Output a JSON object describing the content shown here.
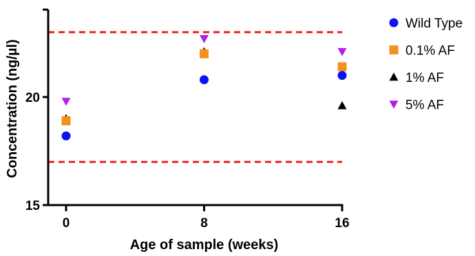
{
  "chart_data": {
    "type": "scatter",
    "title": "",
    "xlabel": "Age of sample (weeks)",
    "ylabel": "Concentration (ng/µl)",
    "x_ticks": [
      0,
      8,
      16
    ],
    "x_tick_labels": [
      "0",
      "8",
      "16"
    ],
    "y_ticks": [
      15,
      20
    ],
    "y_tick_labels": [
      "15",
      "20"
    ],
    "xlim": [
      -1.1,
      16
    ],
    "ylim": [
      15,
      24
    ],
    "grid": false,
    "legend_position": "top-right",
    "reference_lines": [
      {
        "y": 23.0,
        "color": "#ee2222",
        "style": "dashed"
      },
      {
        "y": 17.0,
        "color": "#ee2222",
        "style": "dashed"
      }
    ],
    "series": [
      {
        "name": "Wild Type",
        "marker": "circle",
        "color": "#0a14f0",
        "points": [
          [
            0,
            18.2
          ],
          [
            8,
            20.8
          ],
          [
            16,
            21.0
          ]
        ]
      },
      {
        "name": "0.1% AF",
        "marker": "square",
        "color": "#f5901e",
        "points": [
          [
            0,
            18.9
          ],
          [
            8,
            22.0
          ],
          [
            16,
            21.4
          ]
        ]
      },
      {
        "name": "1% AF",
        "marker": "triangle-up",
        "color": "#000000",
        "points": [
          [
            0,
            19.0
          ],
          [
            8,
            22.1
          ],
          [
            16,
            19.6
          ]
        ]
      },
      {
        "name": "5% AF",
        "marker": "triangle-down",
        "color": "#b41ee6",
        "points": [
          [
            0,
            19.8
          ],
          [
            8,
            22.7
          ],
          [
            16,
            22.1
          ]
        ]
      }
    ]
  }
}
